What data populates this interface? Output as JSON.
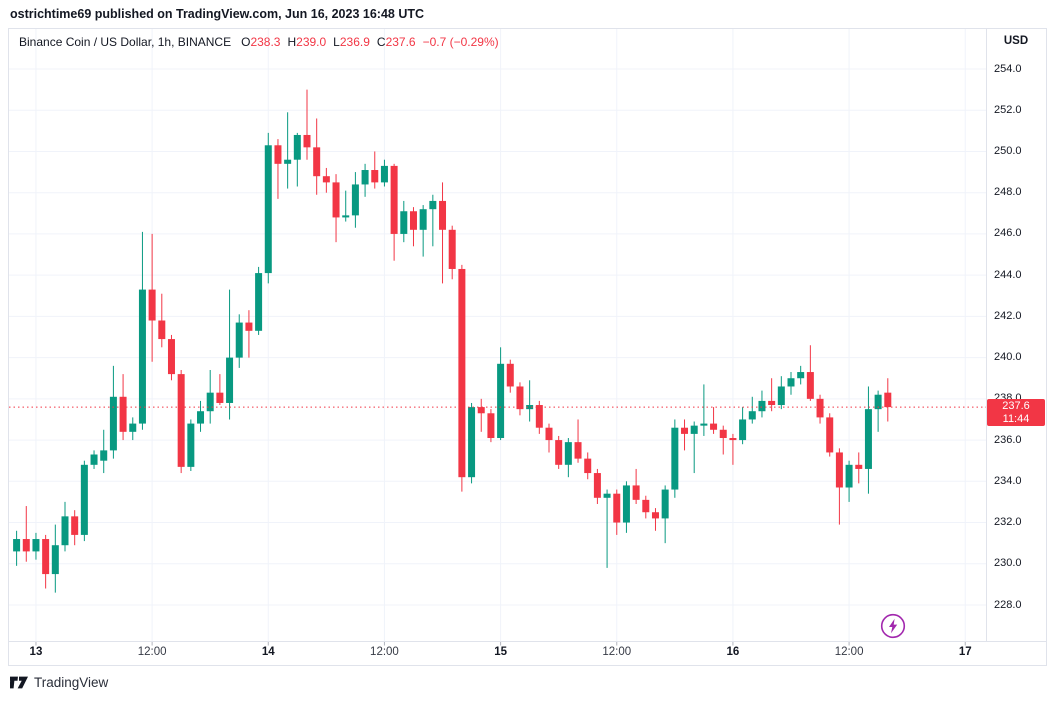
{
  "attribution": {
    "text": "ostrichtime69 published on TradingView.com, Jun 16, 2023 16:48 UTC"
  },
  "legend": {
    "symbol": "Binance Coin / US Dollar, 1h, BINANCE",
    "ohlc": [
      {
        "label": "O",
        "value": "238.3"
      },
      {
        "label": "H",
        "value": "239.0"
      },
      {
        "label": "L",
        "value": "236.9"
      },
      {
        "label": "C",
        "value": "237.6"
      }
    ],
    "change": "−0.7 (−0.29%)"
  },
  "price_axis": {
    "title": "USD",
    "ticks": [
      "254.0",
      "252.0",
      "250.0",
      "248.0",
      "246.0",
      "244.0",
      "242.0",
      "240.0",
      "238.0",
      "236.0",
      "234.0",
      "232.0",
      "230.0",
      "228.0"
    ],
    "last_price_label": {
      "value": "237.6",
      "countdown": "11:44"
    }
  },
  "time_axis": {
    "ticks": [
      {
        "label": "13",
        "hour": 2,
        "major": true
      },
      {
        "label": "12:00",
        "hour": 14,
        "major": false
      },
      {
        "label": "14",
        "hour": 26,
        "major": true
      },
      {
        "label": "12:00",
        "hour": 38,
        "major": false
      },
      {
        "label": "15",
        "hour": 50,
        "major": true
      },
      {
        "label": "12:00",
        "hour": 62,
        "major": false
      },
      {
        "label": "16",
        "hour": 74,
        "major": true
      },
      {
        "label": "12:00",
        "hour": 86,
        "major": false
      },
      {
        "label": "17",
        "hour": 98,
        "major": true
      }
    ]
  },
  "logo": {
    "text": "TradingView"
  },
  "icons": {
    "lightning": "lightning-bolt"
  },
  "colors": {
    "up": "#089981",
    "down": "#F23645",
    "grid": "#F0F3FA",
    "border": "#E0E3EB",
    "text": "#131722",
    "axis_text": "#363A45",
    "tick_mark": "#B2B5BE",
    "accent_purple": "#A228AE",
    "last_price": "#F23645"
  },
  "chart_data": {
    "type": "candlestick",
    "title": "Binance Coin / US Dollar",
    "exchange": "BINANCE",
    "interval": "1h",
    "quote_currency": "USD",
    "start_time": "2023-06-12 22:00 UTC",
    "interval_hours": 1,
    "price_range": [
      228.0,
      254.0
    ],
    "grid": true,
    "last_close": 237.6,
    "countdown_to_next_bar": "11:44",
    "current_bar": {
      "open": 238.3,
      "high": 239.0,
      "low": 236.9,
      "close": 237.6,
      "change": -0.7,
      "change_pct": -0.29
    },
    "candles_format": [
      "open",
      "high",
      "low",
      "close"
    ],
    "candles": [
      [
        230.6,
        231.6,
        229.9,
        231.2
      ],
      [
        231.2,
        232.8,
        230.1,
        230.6
      ],
      [
        230.6,
        231.5,
        230.2,
        231.2
      ],
      [
        231.2,
        231.4,
        228.8,
        229.5
      ],
      [
        229.5,
        231.9,
        228.6,
        230.9
      ],
      [
        230.9,
        233.0,
        230.6,
        232.3
      ],
      [
        232.3,
        232.6,
        230.9,
        231.4
      ],
      [
        231.4,
        235.0,
        231.1,
        234.8
      ],
      [
        234.8,
        235.5,
        234.6,
        235.3
      ],
      [
        235.0,
        236.5,
        234.4,
        235.5
      ],
      [
        235.5,
        239.6,
        235.1,
        238.1
      ],
      [
        238.1,
        239.2,
        236.0,
        236.4
      ],
      [
        236.4,
        237.1,
        236.0,
        236.8
      ],
      [
        236.8,
        246.1,
        236.5,
        243.3
      ],
      [
        243.3,
        246.0,
        239.8,
        241.8
      ],
      [
        241.8,
        243.1,
        240.5,
        240.9
      ],
      [
        240.9,
        241.1,
        238.9,
        239.2
      ],
      [
        239.2,
        239.4,
        234.4,
        234.7
      ],
      [
        234.7,
        237.0,
        234.5,
        236.8
      ],
      [
        236.8,
        237.9,
        236.4,
        237.4
      ],
      [
        237.4,
        239.4,
        236.8,
        238.3
      ],
      [
        238.3,
        239.2,
        237.7,
        237.8
      ],
      [
        237.8,
        243.3,
        237.0,
        240.0
      ],
      [
        240.0,
        242.1,
        239.5,
        241.7
      ],
      [
        241.7,
        242.3,
        240.0,
        241.3
      ],
      [
        241.3,
        244.4,
        241.1,
        244.1
      ],
      [
        244.1,
        250.9,
        243.6,
        250.3
      ],
      [
        250.3,
        250.6,
        247.7,
        249.4
      ],
      [
        249.4,
        251.9,
        248.2,
        249.6
      ],
      [
        249.6,
        250.9,
        248.3,
        250.8
      ],
      [
        250.8,
        253.0,
        249.6,
        250.2
      ],
      [
        250.2,
        251.6,
        247.9,
        248.8
      ],
      [
        248.8,
        249.2,
        248.0,
        248.5
      ],
      [
        248.5,
        248.9,
        245.6,
        246.8
      ],
      [
        246.8,
        248.1,
        246.6,
        246.9
      ],
      [
        246.9,
        249.0,
        246.3,
        248.4
      ],
      [
        248.4,
        249.4,
        247.8,
        249.1
      ],
      [
        249.1,
        250.0,
        248.2,
        248.5
      ],
      [
        248.5,
        249.6,
        248.3,
        249.3
      ],
      [
        249.3,
        249.4,
        244.7,
        246.0
      ],
      [
        246.0,
        247.6,
        245.6,
        247.1
      ],
      [
        247.1,
        247.3,
        245.4,
        246.2
      ],
      [
        246.2,
        247.4,
        244.9,
        247.2
      ],
      [
        247.2,
        247.9,
        245.4,
        247.6
      ],
      [
        247.6,
        248.5,
        243.6,
        246.2
      ],
      [
        246.2,
        246.4,
        243.8,
        244.3
      ],
      [
        244.3,
        244.5,
        233.5,
        234.2
      ],
      [
        234.2,
        237.8,
        233.9,
        237.6
      ],
      [
        237.6,
        238.0,
        236.4,
        237.3
      ],
      [
        237.3,
        237.5,
        235.9,
        236.1
      ],
      [
        236.1,
        240.5,
        236.0,
        239.7
      ],
      [
        239.7,
        239.9,
        238.3,
        238.6
      ],
      [
        238.6,
        238.8,
        237.2,
        237.5
      ],
      [
        237.5,
        238.9,
        236.9,
        237.7
      ],
      [
        237.7,
        237.9,
        236.3,
        236.6
      ],
      [
        236.6,
        236.8,
        235.4,
        236.0
      ],
      [
        236.0,
        236.2,
        234.6,
        234.8
      ],
      [
        234.8,
        236.1,
        234.2,
        235.9
      ],
      [
        235.9,
        237.0,
        234.9,
        235.1
      ],
      [
        235.1,
        235.4,
        234.1,
        234.4
      ],
      [
        234.4,
        234.6,
        232.9,
        233.2
      ],
      [
        233.2,
        233.6,
        229.8,
        233.4
      ],
      [
        233.4,
        233.6,
        231.4,
        232.0
      ],
      [
        232.0,
        234.0,
        231.5,
        233.8
      ],
      [
        233.8,
        234.6,
        232.9,
        233.1
      ],
      [
        233.1,
        233.3,
        232.2,
        232.5
      ],
      [
        232.5,
        232.7,
        231.6,
        232.2
      ],
      [
        232.2,
        233.8,
        231.0,
        233.6
      ],
      [
        233.6,
        237.0,
        233.2,
        236.6
      ],
      [
        236.6,
        237.0,
        235.5,
        236.3
      ],
      [
        236.3,
        236.9,
        234.4,
        236.7
      ],
      [
        236.7,
        238.7,
        236.2,
        236.8
      ],
      [
        236.8,
        237.6,
        236.3,
        236.5
      ],
      [
        236.5,
        236.7,
        235.3,
        236.1
      ],
      [
        236.1,
        236.3,
        234.8,
        236.0
      ],
      [
        236.0,
        237.6,
        235.8,
        237.0
      ],
      [
        237.0,
        238.1,
        236.8,
        237.4
      ],
      [
        237.4,
        238.4,
        237.1,
        237.9
      ],
      [
        237.9,
        239.0,
        237.4,
        237.7
      ],
      [
        237.7,
        239.1,
        237.5,
        238.6
      ],
      [
        238.6,
        239.3,
        238.2,
        239.0
      ],
      [
        239.0,
        239.6,
        238.7,
        239.3
      ],
      [
        239.3,
        240.6,
        237.9,
        238.0
      ],
      [
        238.0,
        238.2,
        236.8,
        237.1
      ],
      [
        237.1,
        237.3,
        235.2,
        235.4
      ],
      [
        235.4,
        235.6,
        231.9,
        233.7
      ],
      [
        233.7,
        235.0,
        233.0,
        234.8
      ],
      [
        234.8,
        235.4,
        233.9,
        234.6
      ],
      [
        234.6,
        238.6,
        233.4,
        237.5
      ],
      [
        237.5,
        238.4,
        236.4,
        238.2
      ],
      [
        238.3,
        239.0,
        236.9,
        237.6
      ]
    ]
  }
}
